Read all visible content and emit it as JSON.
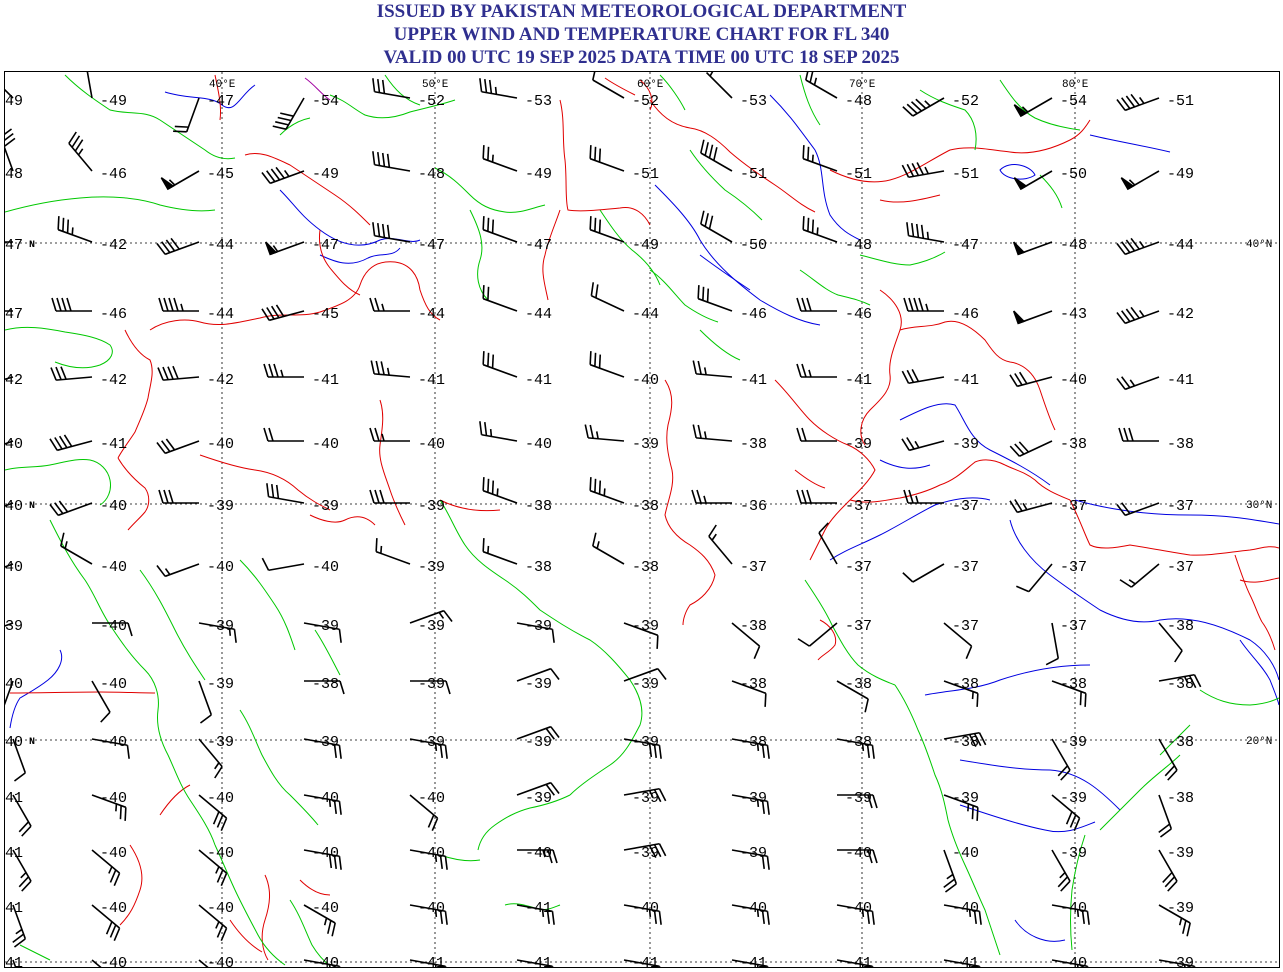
{
  "header": {
    "line1": "ISSUED BY PAKISTAN METEOROLOGICAL DEPARTMENT",
    "line2": "UPPER WIND AND TEMPERATURE CHART FOR FL 340",
    "line3": "VALID 00 UTC 19 SEP 2025 DATA TIME 00 UTC 18 SEP 2025"
  },
  "colors": {
    "title": "#2f2f8f",
    "borders_country": "#e00000",
    "coastline": "#00c800",
    "rivers": "#0000e0",
    "barbs": "#000000"
  },
  "map": {
    "longitude_labels": [
      "40°E",
      "50°E",
      "60°E",
      "70°E",
      "80°E"
    ],
    "latitude_labels_left": [
      "47",
      "40",
      "40"
    ],
    "latitude_labels_left_suffix": "N",
    "latitude_labels_right": [
      "40°N",
      "30°N",
      "20°N"
    ],
    "temperature_rows": [
      [
        "49",
        "-49",
        "-47",
        "-54",
        "-52",
        "-53",
        "-52",
        "-53",
        "-48",
        "-52",
        "-54",
        "-51"
      ],
      [
        "48",
        "-46",
        "-45",
        "-49",
        "-48",
        "-49",
        "-51",
        "-51",
        "-51",
        "-51",
        "-50",
        "-49"
      ],
      [
        "47",
        "-42",
        "-44",
        "-47",
        "-47",
        "-47",
        "-49",
        "-50",
        "-48",
        "-47",
        "-48",
        "-44"
      ],
      [
        "47",
        "-46",
        "-44",
        "-45",
        "-44",
        "-44",
        "-44",
        "-46",
        "-46",
        "-46",
        "-43",
        "-42"
      ],
      [
        "42",
        "-42",
        "-42",
        "-41",
        "-41",
        "-41",
        "-40",
        "-41",
        "-41",
        "-41",
        "-40",
        "-41"
      ],
      [
        "40",
        "-41",
        "-40",
        "-40",
        "-40",
        "-40",
        "-39",
        "-38",
        "-39",
        "-39",
        "-38",
        "-38"
      ],
      [
        "40",
        "-40",
        "-39",
        "-39",
        "-39",
        "-38",
        "-38",
        "-36",
        "-37",
        "-37",
        "-37",
        "-37"
      ],
      [
        "40",
        "-40",
        "-40",
        "-40",
        "-39",
        "-38",
        "-38",
        "-37",
        "-37",
        "-37",
        "-37",
        "-37"
      ],
      [
        "39",
        "-40",
        "-39",
        "-39",
        "-39",
        "-39",
        "-39",
        "-38",
        "-37",
        "-37",
        "-37",
        "-38"
      ],
      [
        "40",
        "-40",
        "-39",
        "-38",
        "-39",
        "-39",
        "-39",
        "-38",
        "-38",
        "-38",
        "-38",
        "-38"
      ],
      [
        "40",
        "-40",
        "-39",
        "-39",
        "-39",
        "-39",
        "-39",
        "-38",
        "-38",
        "-38",
        "-39",
        "-38"
      ],
      [
        "41",
        "-40",
        "-40",
        "-40",
        "-40",
        "-39",
        "-39",
        "-39",
        "-39",
        "-39",
        "-39",
        "-38"
      ],
      [
        "41",
        "-40",
        "-40",
        "-40",
        "-40",
        "-40",
        "-39",
        "-39",
        "-40",
        "-40",
        "-39",
        "-39"
      ],
      [
        "41",
        "-40",
        "-40",
        "-40",
        "-40",
        "-41",
        "-40",
        "-40",
        "-40",
        "-40",
        "-40",
        "-39"
      ],
      [
        "41",
        "-40",
        "-40",
        "-40",
        "-41",
        "-41",
        "-41",
        "-41",
        "-41",
        "-41",
        "-40",
        "-39"
      ]
    ],
    "wind_barbs": [
      [
        {
          "dir": 315,
          "spd": 25
        },
        {
          "dir": 350,
          "spd": 15
        },
        {
          "dir": 200,
          "spd": 20
        },
        {
          "dir": 210,
          "spd": 40
        },
        {
          "dir": 280,
          "spd": 30
        },
        {
          "dir": 280,
          "spd": 35
        },
        {
          "dir": 300,
          "spd": 10
        },
        {
          "dir": 315,
          "spd": 5
        },
        {
          "dir": 300,
          "spd": 25
        },
        {
          "dir": 240,
          "spd": 45
        },
        {
          "dir": 240,
          "spd": 55
        },
        {
          "dir": 250,
          "spd": 45
        }
      ],
      [
        {
          "dir": 340,
          "spd": 30
        },
        {
          "dir": 320,
          "spd": 35
        },
        {
          "dir": 240,
          "spd": 55
        },
        {
          "dir": 250,
          "spd": 45
        },
        {
          "dir": 280,
          "spd": 40
        },
        {
          "dir": 290,
          "spd": 25
        },
        {
          "dir": 290,
          "spd": 30
        },
        {
          "dir": 300,
          "spd": 40
        },
        {
          "dir": 290,
          "spd": 25
        },
        {
          "dir": 260,
          "spd": 45
        },
        {
          "dir": 240,
          "spd": 50
        },
        {
          "dir": 240,
          "spd": 55
        }
      ],
      [
        {
          "dir": 270,
          "spd": 25
        },
        {
          "dir": 290,
          "spd": 35
        },
        {
          "dir": 250,
          "spd": 40
        },
        {
          "dir": 250,
          "spd": 55
        },
        {
          "dir": 280,
          "spd": 40
        },
        {
          "dir": 290,
          "spd": 30
        },
        {
          "dir": 290,
          "spd": 30
        },
        {
          "dir": 300,
          "spd": 30
        },
        {
          "dir": 290,
          "spd": 35
        },
        {
          "dir": 280,
          "spd": 45
        },
        {
          "dir": 250,
          "spd": 50
        },
        {
          "dir": 250,
          "spd": 45
        }
      ],
      [
        {
          "dir": 270,
          "spd": 30
        },
        {
          "dir": 270,
          "spd": 40
        },
        {
          "dir": 270,
          "spd": 45
        },
        {
          "dir": 255,
          "spd": 40
        },
        {
          "dir": 270,
          "spd": 25
        },
        {
          "dir": 290,
          "spd": 20
        },
        {
          "dir": 295,
          "spd": 20
        },
        {
          "dir": 290,
          "spd": 30
        },
        {
          "dir": 270,
          "spd": 30
        },
        {
          "dir": 270,
          "spd": 45
        },
        {
          "dir": 250,
          "spd": 50
        },
        {
          "dir": 250,
          "spd": 45
        }
      ],
      [
        {
          "dir": 255,
          "spd": 40
        },
        {
          "dir": 265,
          "spd": 30
        },
        {
          "dir": 265,
          "spd": 40
        },
        {
          "dir": 270,
          "spd": 35
        },
        {
          "dir": 275,
          "spd": 35
        },
        {
          "dir": 290,
          "spd": 30
        },
        {
          "dir": 290,
          "spd": 30
        },
        {
          "dir": 275,
          "spd": 25
        },
        {
          "dir": 270,
          "spd": 25
        },
        {
          "dir": 260,
          "spd": 30
        },
        {
          "dir": 255,
          "spd": 30
        },
        {
          "dir": 250,
          "spd": 25
        }
      ],
      [
        {
          "dir": 250,
          "spd": 35
        },
        {
          "dir": 255,
          "spd": 40
        },
        {
          "dir": 250,
          "spd": 30
        },
        {
          "dir": 270,
          "spd": 20
        },
        {
          "dir": 270,
          "spd": 25
        },
        {
          "dir": 280,
          "spd": 25
        },
        {
          "dir": 275,
          "spd": 25
        },
        {
          "dir": 275,
          "spd": 25
        },
        {
          "dir": 270,
          "spd": 20
        },
        {
          "dir": 255,
          "spd": 25
        },
        {
          "dir": 245,
          "spd": 30
        },
        {
          "dir": 270,
          "spd": 30
        }
      ],
      [
        {
          "dir": 250,
          "spd": 40
        },
        {
          "dir": 250,
          "spd": 30
        },
        {
          "dir": 270,
          "spd": 30
        },
        {
          "dir": 280,
          "spd": 30
        },
        {
          "dir": 270,
          "spd": 30
        },
        {
          "dir": 290,
          "spd": 35
        },
        {
          "dir": 290,
          "spd": 35
        },
        {
          "dir": 270,
          "spd": 25
        },
        {
          "dir": 270,
          "spd": 30
        },
        {
          "dir": 270,
          "spd": 25
        },
        {
          "dir": 255,
          "spd": 25
        },
        {
          "dir": 250,
          "spd": 20
        }
      ],
      [
        {
          "dir": 250,
          "spd": 35
        },
        {
          "dir": 300,
          "spd": 15
        },
        {
          "dir": 250,
          "spd": 15
        },
        {
          "dir": 260,
          "spd": 10
        },
        {
          "dir": 290,
          "spd": 15
        },
        {
          "dir": 290,
          "spd": 15
        },
        {
          "dir": 300,
          "spd": 15
        },
        {
          "dir": 320,
          "spd": 15
        },
        {
          "dir": 330,
          "spd": 10
        },
        {
          "dir": 240,
          "spd": 10
        },
        {
          "dir": 220,
          "spd": 10
        },
        {
          "dir": 230,
          "spd": 15
        }
      ],
      [
        {
          "dir": 250,
          "spd": 10
        },
        {
          "dir": 90,
          "spd": 10
        },
        {
          "dir": 100,
          "spd": 15
        },
        {
          "dir": 100,
          "spd": 10
        },
        {
          "dir": 70,
          "spd": 15
        },
        {
          "dir": 100,
          "spd": 10
        },
        {
          "dir": 110,
          "spd": 10
        },
        {
          "dir": 130,
          "spd": 10
        },
        {
          "dir": 230,
          "spd": 10
        },
        {
          "dir": 130,
          "spd": 10
        },
        {
          "dir": 170,
          "spd": 10
        },
        {
          "dir": 140,
          "spd": 10
        }
      ],
      [
        {
          "dir": 200,
          "spd": 10
        },
        {
          "dir": 150,
          "spd": 10
        },
        {
          "dir": 160,
          "spd": 10
        },
        {
          "dir": 90,
          "spd": 10
        },
        {
          "dir": 90,
          "spd": 10
        },
        {
          "dir": 70,
          "spd": 10
        },
        {
          "dir": 70,
          "spd": 10
        },
        {
          "dir": 110,
          "spd": 10
        },
        {
          "dir": 120,
          "spd": 10
        },
        {
          "dir": 110,
          "spd": 15
        },
        {
          "dir": 110,
          "spd": 20
        },
        {
          "dir": 80,
          "spd": 25
        }
      ],
      [
        {
          "dir": 160,
          "spd": 10
        },
        {
          "dir": 100,
          "spd": 10
        },
        {
          "dir": 140,
          "spd": 15
        },
        {
          "dir": 100,
          "spd": 20
        },
        {
          "dir": 100,
          "spd": 25
        },
        {
          "dir": 70,
          "spd": 20
        },
        {
          "dir": 100,
          "spd": 30
        },
        {
          "dir": 100,
          "spd": 25
        },
        {
          "dir": 100,
          "spd": 25
        },
        {
          "dir": 80,
          "spd": 30
        },
        {
          "dir": 150,
          "spd": 20
        },
        {
          "dir": 150,
          "spd": 20
        }
      ],
      [
        {
          "dir": 150,
          "spd": 20
        },
        {
          "dir": 110,
          "spd": 25
        },
        {
          "dir": 130,
          "spd": 30
        },
        {
          "dir": 100,
          "spd": 25
        },
        {
          "dir": 130,
          "spd": 20
        },
        {
          "dir": 70,
          "spd": 20
        },
        {
          "dir": 80,
          "spd": 25
        },
        {
          "dir": 100,
          "spd": 25
        },
        {
          "dir": 90,
          "spd": 20
        },
        {
          "dir": 110,
          "spd": 25
        },
        {
          "dir": 130,
          "spd": 30
        },
        {
          "dir": 160,
          "spd": 20
        }
      ],
      [
        {
          "dir": 150,
          "spd": 25
        },
        {
          "dir": 130,
          "spd": 25
        },
        {
          "dir": 130,
          "spd": 25
        },
        {
          "dir": 100,
          "spd": 30
        },
        {
          "dir": 100,
          "spd": 25
        },
        {
          "dir": 90,
          "spd": 25
        },
        {
          "dir": 80,
          "spd": 30
        },
        {
          "dir": 100,
          "spd": 20
        },
        {
          "dir": 90,
          "spd": 20
        },
        {
          "dir": 160,
          "spd": 25
        },
        {
          "dir": 150,
          "spd": 25
        },
        {
          "dir": 150,
          "spd": 30
        }
      ],
      [
        {
          "dir": 160,
          "spd": 25
        },
        {
          "dir": 130,
          "spd": 30
        },
        {
          "dir": 130,
          "spd": 25
        },
        {
          "dir": 120,
          "spd": 25
        },
        {
          "dir": 100,
          "spd": 25
        },
        {
          "dir": 100,
          "spd": 25
        },
        {
          "dir": 100,
          "spd": 25
        },
        {
          "dir": 100,
          "spd": 25
        },
        {
          "dir": 100,
          "spd": 25
        },
        {
          "dir": 100,
          "spd": 25
        },
        {
          "dir": 100,
          "spd": 25
        },
        {
          "dir": 120,
          "spd": 25
        }
      ],
      [
        {
          "dir": 160,
          "spd": 25
        },
        {
          "dir": 130,
          "spd": 25
        },
        {
          "dir": 130,
          "spd": 25
        },
        {
          "dir": 100,
          "spd": 25
        },
        {
          "dir": 100,
          "spd": 25
        },
        {
          "dir": 100,
          "spd": 20
        },
        {
          "dir": 100,
          "spd": 20
        },
        {
          "dir": 100,
          "spd": 25
        },
        {
          "dir": 100,
          "spd": 25
        },
        {
          "dir": 100,
          "spd": 30
        },
        {
          "dir": 100,
          "spd": 25
        },
        {
          "dir": 100,
          "spd": 30
        }
      ]
    ]
  }
}
